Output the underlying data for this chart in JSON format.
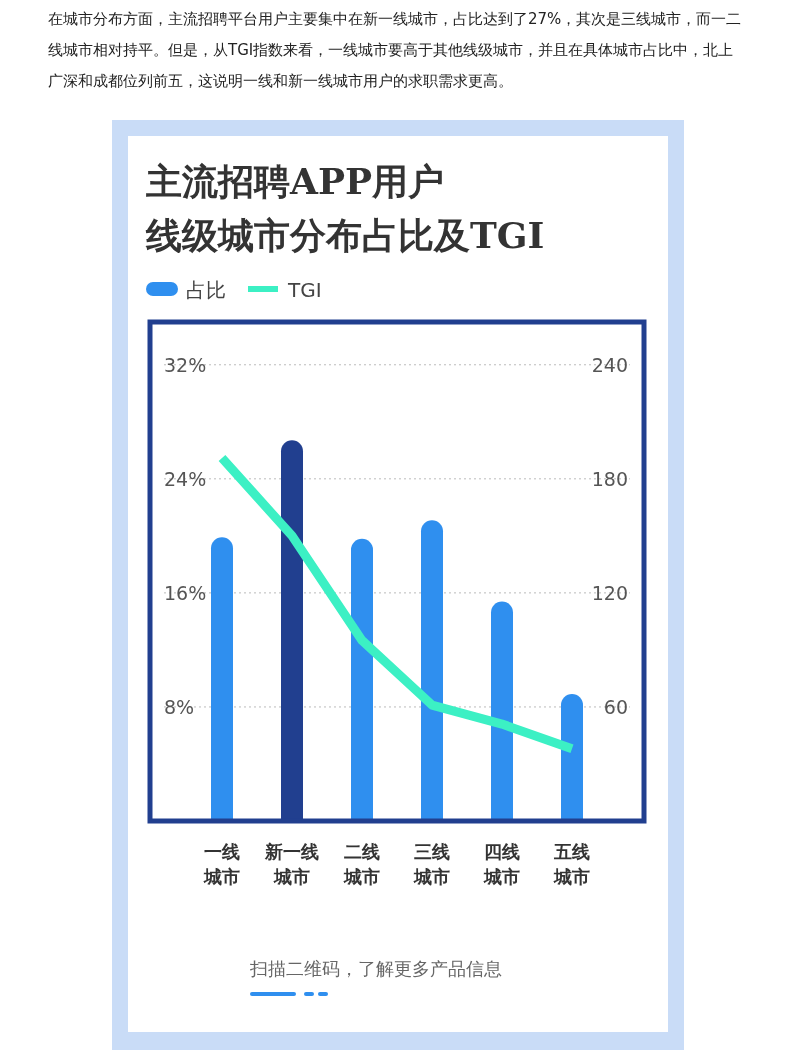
{
  "chart_data": {
    "type": "bar",
    "title": "主流招聘APP用户线级城市分布占比及TGI",
    "annotations": [
      "在城市分布方面，主流招聘平台用户主要集中在新一线城市，占比达到了27%，其次是三线城市，而一二线城市相对持平。但是，从TGI指数来看，一线城市要高于其他线级城市，并且在具体城市占比中，北上广深和成都位列前五，这说明一线和新一线城市用户的求职需求更高。",
      "扫描二维码，了解更多产品信息"
    ],
    "categories": [
      "一线城市",
      "新一线城市",
      "二线城市",
      "三线城市",
      "四线城市",
      "五线城市"
    ],
    "series": [
      {
        "name": "占比",
        "color": "#2f8fef",
        "colors": [
          "#2f8fef",
          "#213f8f",
          "#2f8fef",
          "#2f8fef",
          "#2f8fef",
          "#2f8fef"
        ],
        "values": [
          19.9,
          26.7,
          19.8,
          21.1,
          15.4,
          8.9
        ]
      },
      {
        "name": "TGI",
        "type": "line",
        "axis": "y2",
        "color": "#3cf0c4",
        "values": [
          191,
          150,
          95,
          61,
          51,
          38
        ]
      }
    ],
    "ylim": [
      0,
      35
    ],
    "yticks": [
      {
        "value": 8,
        "label": "8%"
      },
      {
        "value": 16,
        "label": "16%"
      },
      {
        "value": 24,
        "label": "24%"
      },
      {
        "value": 32,
        "label": "32%"
      }
    ],
    "y2lim": [
      0,
      262.5
    ],
    "y2ticks": [
      60,
      120,
      180,
      240
    ],
    "grid": "y",
    "legend": "top left",
    "marker": "none",
    "line_style": "solid"
  }
}
